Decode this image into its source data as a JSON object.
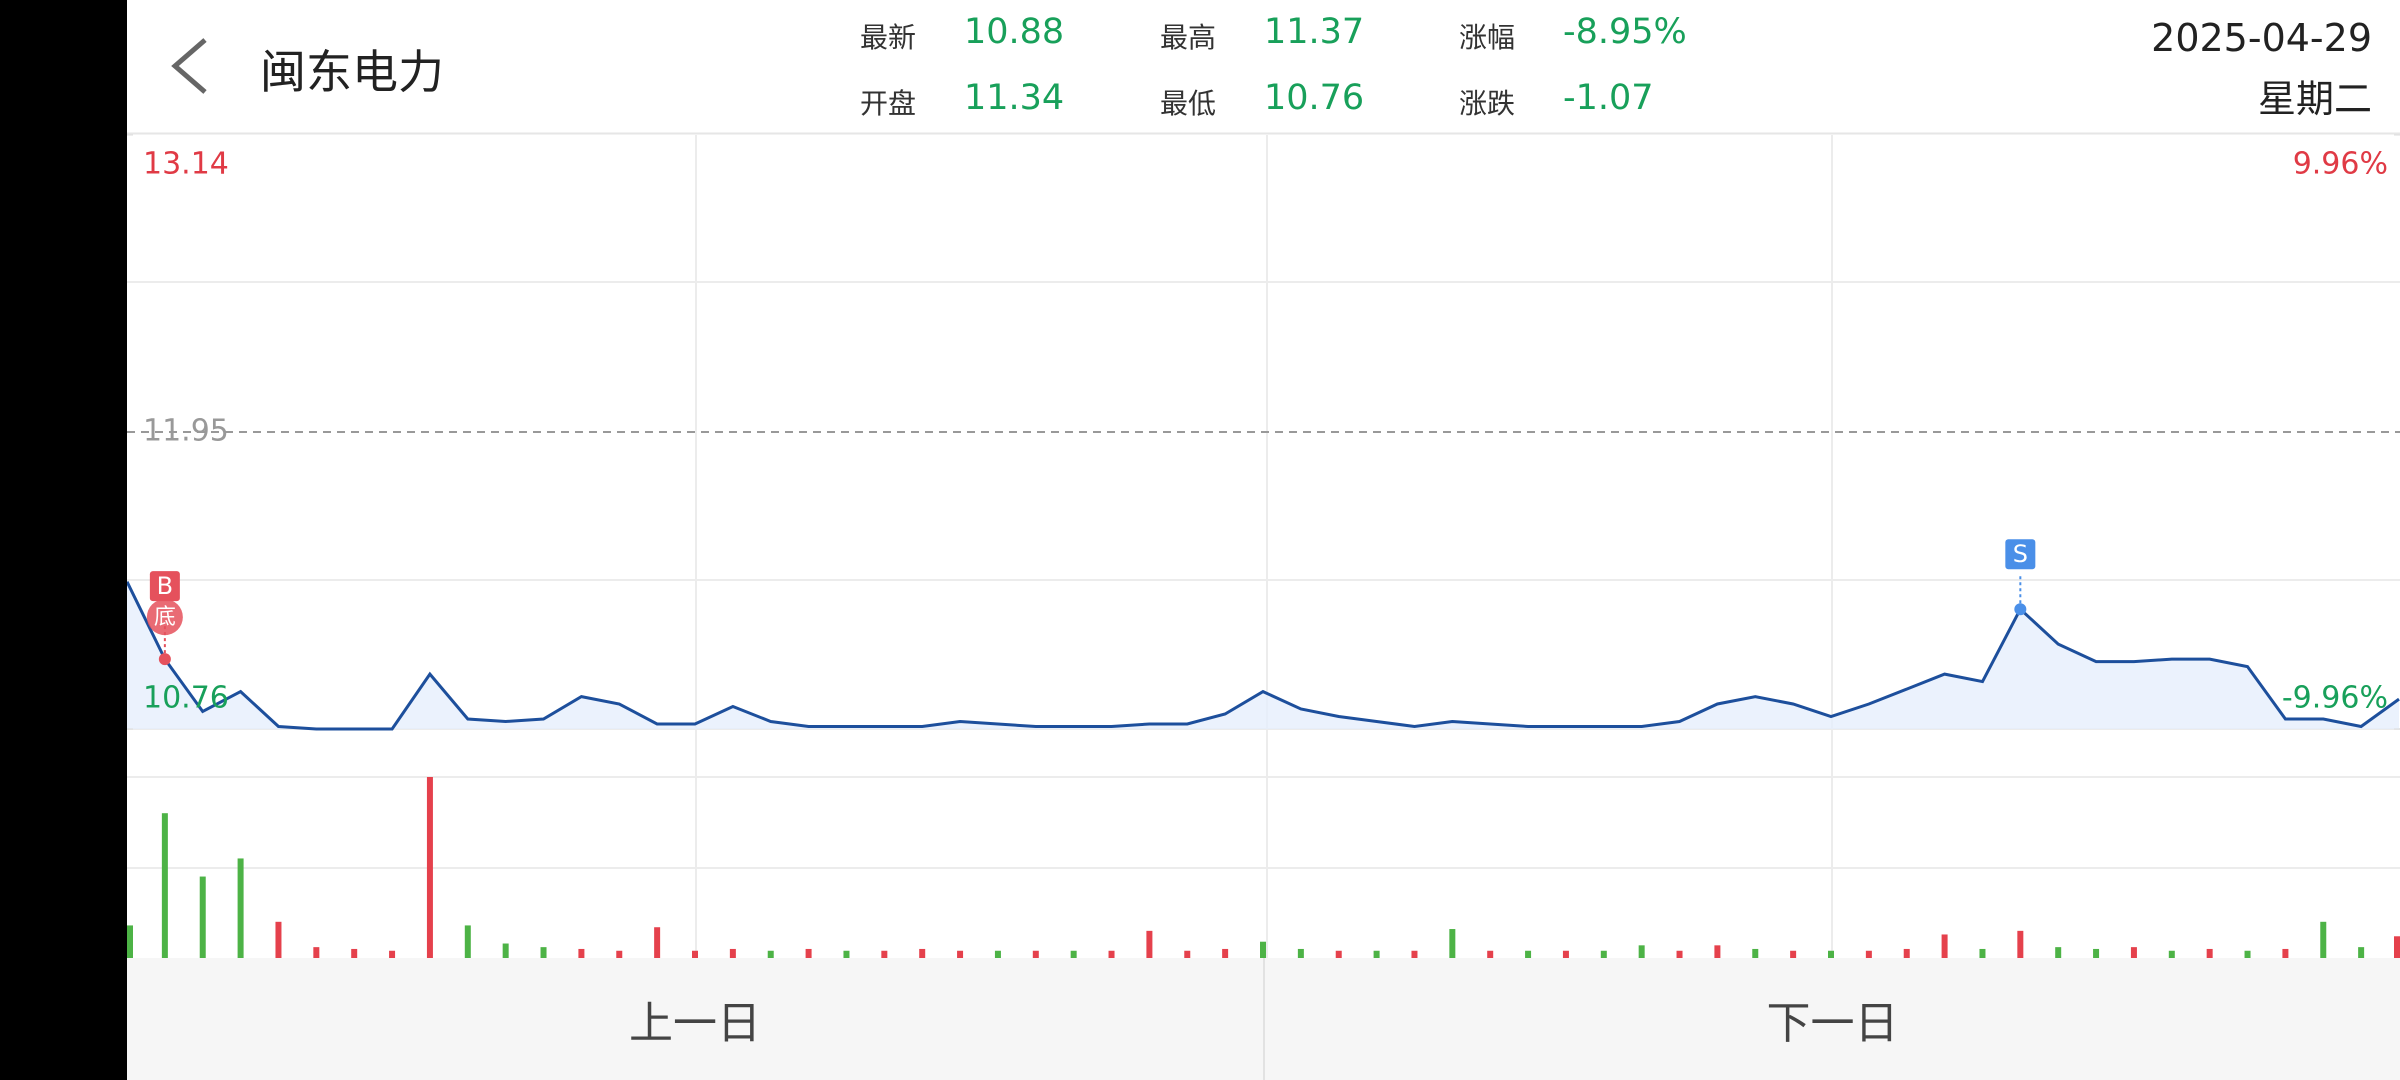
{
  "header": {
    "title": "闽东电力",
    "stats": [
      {
        "label": "最新",
        "value": "10.88"
      },
      {
        "label": "最高",
        "value": "11.37"
      },
      {
        "label": "涨幅",
        "value": "-8.95%"
      },
      {
        "label": "开盘",
        "value": "11.34"
      },
      {
        "label": "最低",
        "value": "10.76"
      },
      {
        "label": "涨跌",
        "value": "-1.07"
      }
    ],
    "date": "2025-04-29",
    "weekday": "星期二"
  },
  "chart_data": [
    {
      "type": "line",
      "color": "#1d4f9c",
      "values": [
        11.35,
        11.04,
        10.83,
        10.91,
        10.77,
        10.76,
        10.76,
        10.76,
        10.98,
        10.8,
        10.79,
        10.8,
        10.89,
        10.86,
        10.78,
        10.78,
        10.85,
        10.79,
        10.77,
        10.77,
        10.77,
        10.77,
        10.79,
        10.78,
        10.77,
        10.77,
        10.77,
        10.78,
        10.78,
        10.82,
        10.91,
        10.84,
        10.81,
        10.79,
        10.77,
        10.79,
        10.78,
        10.77,
        10.77,
        10.77,
        10.77,
        10.79,
        10.86,
        10.89,
        10.86,
        10.81,
        10.86,
        10.92,
        10.98,
        10.95,
        11.24,
        11.1,
        11.03,
        11.03,
        11.04,
        11.04,
        11.01,
        10.8,
        10.8,
        10.77,
        10.88
      ],
      "ylim": [
        10.76,
        13.14
      ],
      "yticks": [
        10.76,
        11.95,
        13.14
      ],
      "y2lim": [
        -9.96,
        9.96
      ],
      "y2ticks": [
        {
          "value": -9.96,
          "label": "-9.96%"
        },
        {
          "value": 9.96,
          "label": "9.96%"
        }
      ],
      "markers": [
        {
          "label": "B",
          "sub": "底"
        },
        {
          "label": "S"
        }
      ]
    },
    {
      "type": "bar",
      "ylim": [
        0,
        100
      ],
      "values": [
        18,
        80,
        45,
        55,
        20,
        6,
        5,
        4,
        100,
        18,
        8,
        6,
        5,
        4,
        17,
        4,
        5,
        4,
        5,
        4,
        4,
        5,
        4,
        4,
        4,
        4,
        4,
        15,
        4,
        5,
        9,
        5,
        4,
        4,
        4,
        16,
        4,
        4,
        4,
        4,
        7,
        4,
        7,
        5,
        4,
        4,
        4,
        5,
        13,
        5,
        15,
        6,
        5,
        6,
        4,
        5,
        4,
        5,
        20,
        6,
        12
      ],
      "colors": [
        "#4db346",
        "#4db346",
        "#4db346",
        "#4db346",
        "#e5414c",
        "#e5414c",
        "#e5414c",
        "#e5414c",
        "#e5414c",
        "#4db346",
        "#4db346",
        "#4db346",
        "#e5414c",
        "#e5414c",
        "#e5414c",
        "#e5414c",
        "#e5414c",
        "#4db346",
        "#e5414c",
        "#4db346",
        "#e5414c",
        "#e5414c",
        "#e5414c",
        "#4db346",
        "#e5414c",
        "#4db346",
        "#e5414c",
        "#e5414c",
        "#e5414c",
        "#e5414c",
        "#4db346",
        "#4db346",
        "#e5414c",
        "#4db346",
        "#e5414c",
        "#4db346",
        "#e5414c",
        "#4db346",
        "#e5414c",
        "#4db346",
        "#4db346",
        "#e5414c",
        "#e5414c",
        "#4db346",
        "#e5414c",
        "#4db346",
        "#e5414c",
        "#e5414c",
        "#e5414c",
        "#4db346",
        "#e5414c",
        "#4db346",
        "#4db346",
        "#e5414c",
        "#4db346",
        "#e5414c",
        "#4db346",
        "#e5414c",
        "#4db346",
        "#4db346",
        "#e5414c"
      ]
    }
  ],
  "buttons": [
    "上一日",
    "下一日"
  ]
}
